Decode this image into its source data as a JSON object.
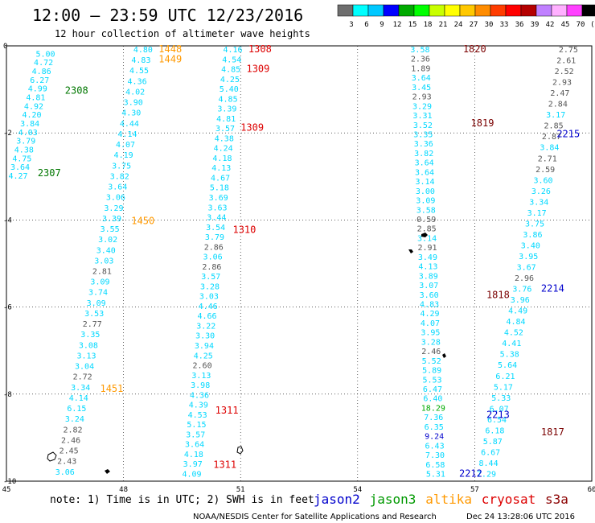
{
  "header": {
    "title": "12:00 – 23:59 UTC 12/23/2016",
    "subtitle": "12 hour collection of altimeter wave heights"
  },
  "colorbar": {
    "labels": [
      "3",
      "6",
      "9",
      "12",
      "15",
      "18",
      "21",
      "24",
      "27",
      "30",
      "33",
      "36",
      "39",
      "42",
      "45",
      "70",
      "(ft)"
    ],
    "colors": [
      "#6e6e6e",
      "#00ffff",
      "#00c8ff",
      "#0000ff",
      "#00aa00",
      "#00ff00",
      "#c8ff00",
      "#ffff00",
      "#ffc800",
      "#ff8c00",
      "#ff3c00",
      "#ff0000",
      "#b40000",
      "#c080ff",
      "#ffb0ff",
      "#ff40ff",
      "#000000"
    ]
  },
  "map": {
    "lon_ticks": [
      "45",
      "48",
      "51",
      "54",
      "57",
      "60"
    ],
    "lat_ticks": [
      "0",
      "-2",
      "-4",
      "-6",
      "-8",
      "-10"
    ],
    "lon_range": [
      45,
      60
    ],
    "lat_range": [
      -10,
      0
    ],
    "gridlines": true,
    "pass_labels": [
      {
        "text": "1448",
        "lon": 48.9,
        "lat": 0.0,
        "color": "#ff9900"
      },
      {
        "text": "1449",
        "lon": 48.9,
        "lat": -0.23,
        "color": "#ff9900"
      },
      {
        "text": "1308",
        "lon": 51.2,
        "lat": 0.0,
        "color": "#dd0000"
      },
      {
        "text": "1309",
        "lon": 51.15,
        "lat": -0.45,
        "color": "#dd0000"
      },
      {
        "text": "1309",
        "lon": 51.0,
        "lat": -1.8,
        "color": "#dd0000"
      },
      {
        "text": "1310",
        "lon": 50.8,
        "lat": -4.15,
        "color": "#dd0000"
      },
      {
        "text": "1311",
        "lon": 50.35,
        "lat": -8.3,
        "color": "#dd0000"
      },
      {
        "text": "1311",
        "lon": 50.3,
        "lat": -9.55,
        "color": "#dd0000"
      },
      {
        "text": "2308",
        "lon": 46.5,
        "lat": -0.95,
        "color": "#007700"
      },
      {
        "text": "2307",
        "lon": 45.8,
        "lat": -2.85,
        "color": "#007700"
      },
      {
        "text": "1450",
        "lon": 48.2,
        "lat": -3.95,
        "color": "#ff9900"
      },
      {
        "text": "1451",
        "lon": 47.4,
        "lat": -7.8,
        "color": "#ff9900"
      },
      {
        "text": "1820",
        "lon": 56.7,
        "lat": 0.0,
        "color": "#7a0000"
      },
      {
        "text": "1819",
        "lon": 56.9,
        "lat": -1.7,
        "color": "#7a0000"
      },
      {
        "text": "1818",
        "lon": 57.3,
        "lat": -5.65,
        "color": "#7a0000"
      },
      {
        "text": "1817",
        "lon": 58.7,
        "lat": -8.8,
        "color": "#7a0000"
      },
      {
        "text": "2215",
        "lon": 59.1,
        "lat": -1.95,
        "color": "#0000cc"
      },
      {
        "text": "2214",
        "lon": 58.7,
        "lat": -5.5,
        "color": "#0000cc"
      },
      {
        "text": "2213",
        "lon": 57.3,
        "lat": -8.4,
        "color": "#0000cc"
      },
      {
        "text": "2212",
        "lon": 56.6,
        "lat": -9.75,
        "color": "#0000cc"
      }
    ],
    "tracks": [
      {
        "name": "west",
        "color": "#00e0ff",
        "lon0": 46.0,
        "lat0": -0.1,
        "lon1": 45.3,
        "lat1": -2.9,
        "values": [
          "5.00",
          "4.72",
          "4.86",
          "6.27",
          "4.99",
          "4.81",
          "4.92",
          "4.20",
          "3.84",
          "4.03",
          "3.79",
          "4.38",
          "4.75",
          "3.64",
          "4.27"
        ]
      },
      {
        "name": "altika",
        "color": "#00e0ff",
        "lon0": 48.5,
        "lat0": 0.0,
        "lon1": 46.5,
        "lat1": -9.7,
        "values": [
          "4.80",
          "4.83",
          "4.55",
          "4.36",
          "4.02",
          "3.90",
          "4.30",
          "4.44",
          "4.14",
          "4.07",
          "4.19",
          "3.75",
          "3.82",
          "3.64",
          "3.06",
          "3.29",
          "3.39",
          "3.55",
          "3.02",
          "3.40",
          "3.03",
          "2.81",
          "3.09",
          "3.74",
          "3.09",
          "3.53",
          "2.77",
          "3.35",
          "3.08",
          "3.13",
          "3.04",
          "2.72",
          "3.34",
          "4.14",
          "6.15",
          "3.24",
          "2.82",
          "2.46",
          "2.45",
          "2.43",
          "3.06"
        ]
      },
      {
        "name": "cryosat-w",
        "color": "#00e0ff",
        "lon0": 50.8,
        "lat0": 0.0,
        "lon1": 49.75,
        "lat1": -9.75,
        "values": [
          "4.16",
          "4.54",
          "4.85",
          "4.25",
          "5.40",
          "4.85",
          "3.39",
          "4.81",
          "3.57",
          "4.38",
          "4.24",
          "4.18",
          "4.13",
          "4.67",
          "5.18",
          "3.69",
          "3.63",
          "3.44",
          "3.54",
          "3.79",
          "2.86",
          "3.06",
          "2.86",
          "3.57",
          "3.28",
          "3.03",
          "4.46",
          "4.66",
          "3.22",
          "3.30",
          "3.94",
          "4.25",
          "2.60",
          "3.13",
          "3.98",
          "4.36",
          "4.39",
          "4.53",
          "5.15",
          "3.57",
          "3.64",
          "4.18",
          "3.97",
          "4.09"
        ]
      },
      {
        "name": "cryosat-e",
        "color": "#00e0ff",
        "lon0": 55.6,
        "lat0": 0.0,
        "lon1": 56.0,
        "lat1": -9.75,
        "values": [
          "3.58",
          "2.36",
          "1.89",
          "3.64",
          "3.45",
          "2.93",
          "3.29",
          "3.31",
          "3.52",
          "3.35",
          "3.36",
          "3.82",
          "3.64",
          "3.64",
          "3.14",
          "3.00",
          "3.09",
          "3.58",
          "0.59",
          "2.85",
          "3.14",
          "2.91",
          "3.49",
          "4.13",
          "3.89",
          "3.07",
          "3.60",
          "4.83",
          "4.29",
          "4.07",
          "3.95",
          "3.28",
          "2.46",
          "5.52",
          "5.89",
          "5.53",
          "6.47",
          "6.40",
          "18.29",
          "7.36",
          "6.35",
          "9.24",
          "6.43",
          "7.30",
          "6.58",
          "5.31"
        ]
      },
      {
        "name": "jason2",
        "color": "#00e0ff",
        "lon0": 59.4,
        "lat0": 0.0,
        "lon1": 57.3,
        "lat1": -9.75,
        "values": [
          "2.75",
          "2.61",
          "2.52",
          "2.93",
          "2.47",
          "2.84",
          "3.17",
          "2.85",
          "2.87",
          "3.84",
          "2.71",
          "2.59",
          "3.60",
          "3.26",
          "3.34",
          "3.17",
          "3.75",
          "3.86",
          "3.40",
          "3.95",
          "3.67",
          "2.96",
          "3.76",
          "3.96",
          "4.49",
          "4.84",
          "4.52",
          "4.41",
          "5.38",
          "5.64",
          "6.21",
          "5.17",
          "5.33",
          "6.07",
          "6.54",
          "6.18",
          "5.87",
          "6.67",
          "8.44",
          "7.29"
        ]
      }
    ]
  },
  "footer": {
    "note": "note:  1) Time is in UTC;  2) SWH is in feet",
    "legend": [
      {
        "label": "jason2",
        "color": "#0000cc"
      },
      {
        "label": "jason3",
        "color": "#009900"
      },
      {
        "label": "altika",
        "color": "#ff9900"
      },
      {
        "label": "cryosat",
        "color": "#dd0000"
      },
      {
        "label": "s3a",
        "color": "#8b0000"
      }
    ],
    "credit": "NOAA/NESDIS Center for Satellite Applications and Research",
    "timestamp": "Dec 24 13:28:06 UTC 2016"
  }
}
